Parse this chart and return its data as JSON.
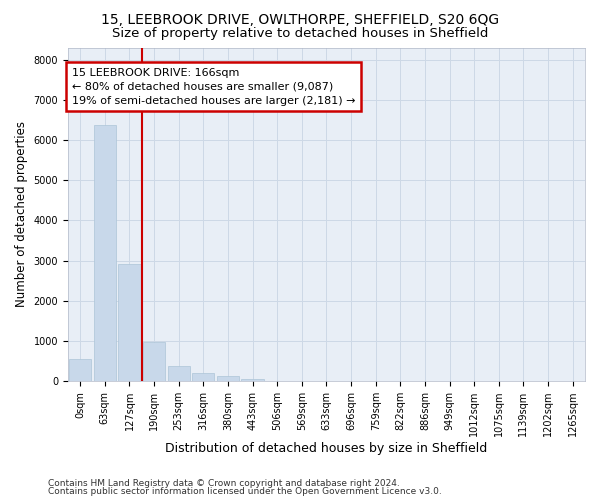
{
  "title_line1": "15, LEEBROOK DRIVE, OWLTHORPE, SHEFFIELD, S20 6QG",
  "title_line2": "Size of property relative to detached houses in Sheffield",
  "xlabel": "Distribution of detached houses by size in Sheffield",
  "ylabel": "Number of detached properties",
  "footer_line1": "Contains HM Land Registry data © Crown copyright and database right 2024.",
  "footer_line2": "Contains public sector information licensed under the Open Government Licence v3.0.",
  "bar_labels": [
    "0sqm",
    "63sqm",
    "127sqm",
    "190sqm",
    "253sqm",
    "316sqm",
    "380sqm",
    "443sqm",
    "506sqm",
    "569sqm",
    "633sqm",
    "696sqm",
    "759sqm",
    "822sqm",
    "886sqm",
    "949sqm",
    "1012sqm",
    "1075sqm",
    "1139sqm",
    "1202sqm",
    "1265sqm"
  ],
  "bar_values": [
    560,
    6380,
    2920,
    975,
    380,
    195,
    130,
    65,
    0,
    0,
    0,
    0,
    0,
    0,
    0,
    0,
    0,
    0,
    0,
    0,
    0
  ],
  "bar_color": "#c8d8ea",
  "bar_edge_color": "#adc4d8",
  "vline_x": 2.5,
  "vline_color": "#cc0000",
  "annotation_text": "15 LEEBROOK DRIVE: 166sqm\n← 80% of detached houses are smaller (9,087)\n19% of semi-detached houses are larger (2,181) →",
  "annotation_box_color": "#ffffff",
  "annotation_box_edge": "#cc0000",
  "ylim": [
    0,
    8300
  ],
  "yticks": [
    0,
    1000,
    2000,
    3000,
    4000,
    5000,
    6000,
    7000,
    8000
  ],
  "grid_color": "#cdd8e6",
  "background_color": "#e8eef6",
  "title_fontsize": 10,
  "subtitle_fontsize": 9.5,
  "axis_label_fontsize": 9,
  "tick_fontsize": 7,
  "annotation_fontsize": 8,
  "ylabel_fontsize": 8.5,
  "footer_fontsize": 6.5
}
